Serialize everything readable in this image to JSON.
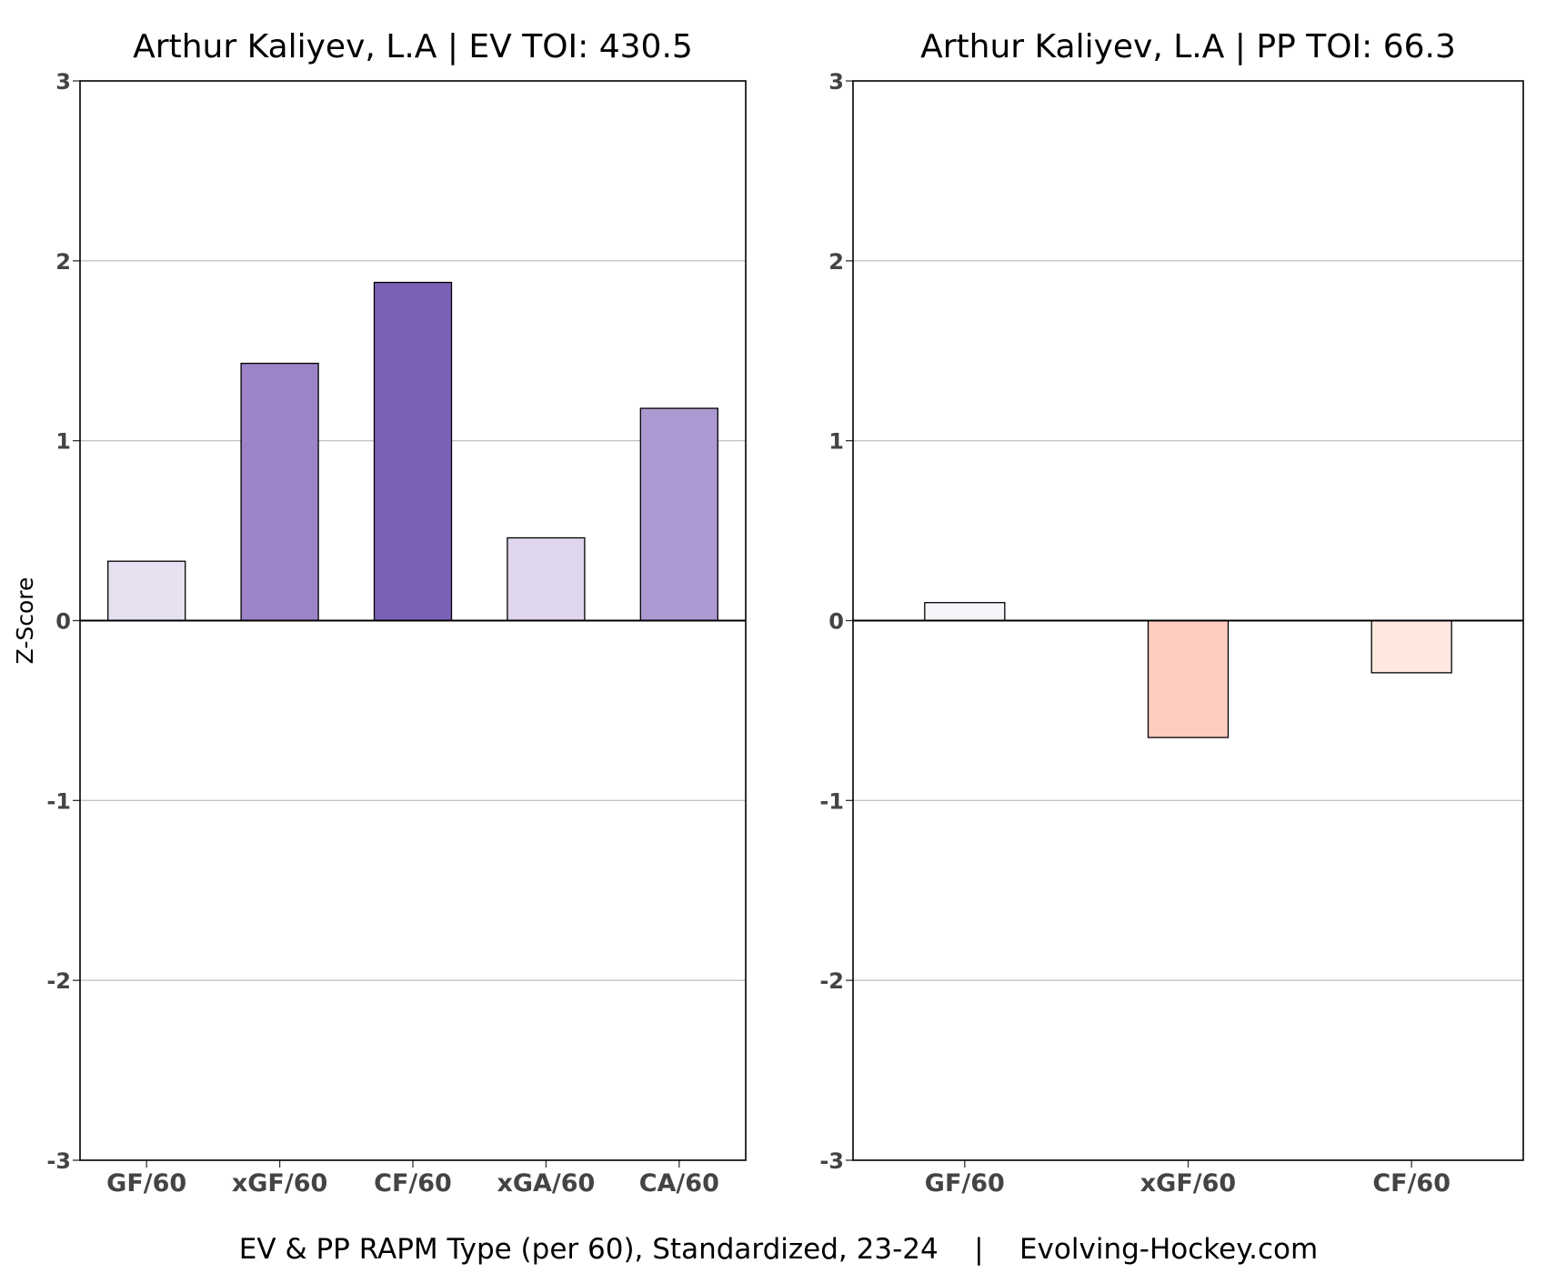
{
  "chart_data": [
    {
      "type": "bar",
      "title": "Arthur Kaliyev, L.A  |  EV TOI: 430.5",
      "ylabel": "Z-Score",
      "ylim": [
        -3,
        3
      ],
      "yticks": [
        "-3",
        "-2",
        "-1",
        "0",
        "1",
        "2",
        "3"
      ],
      "grid": true,
      "categories": [
        "GF/60",
        "xGF/60",
        "CF/60",
        "xGA/60",
        "CA/60"
      ],
      "values": [
        0.33,
        1.43,
        1.88,
        0.46,
        1.18
      ],
      "colors": [
        "#e6e0f1",
        "#9d83c8",
        "#7c60b7",
        "#dfd5ec",
        "#ac99d1"
      ]
    },
    {
      "type": "bar",
      "title": "Arthur Kaliyev, L.A  |  PP TOI: 66.3",
      "ylabel": "",
      "ylim": [
        -3,
        3
      ],
      "yticks": [
        "-3",
        "-2",
        "-1",
        "0",
        "1",
        "2",
        "3"
      ],
      "grid": true,
      "categories": [
        "GF/60",
        "xGF/60",
        "CF/60"
      ],
      "values": [
        0.1,
        -0.65,
        -0.29
      ],
      "colors": [
        "#f6f4f8",
        "#fdcdc0",
        "#fee8e0"
      ]
    }
  ],
  "caption": "EV & PP RAPM Type (per 60), Standardized, 23-24    |    Evolving-Hockey.com"
}
